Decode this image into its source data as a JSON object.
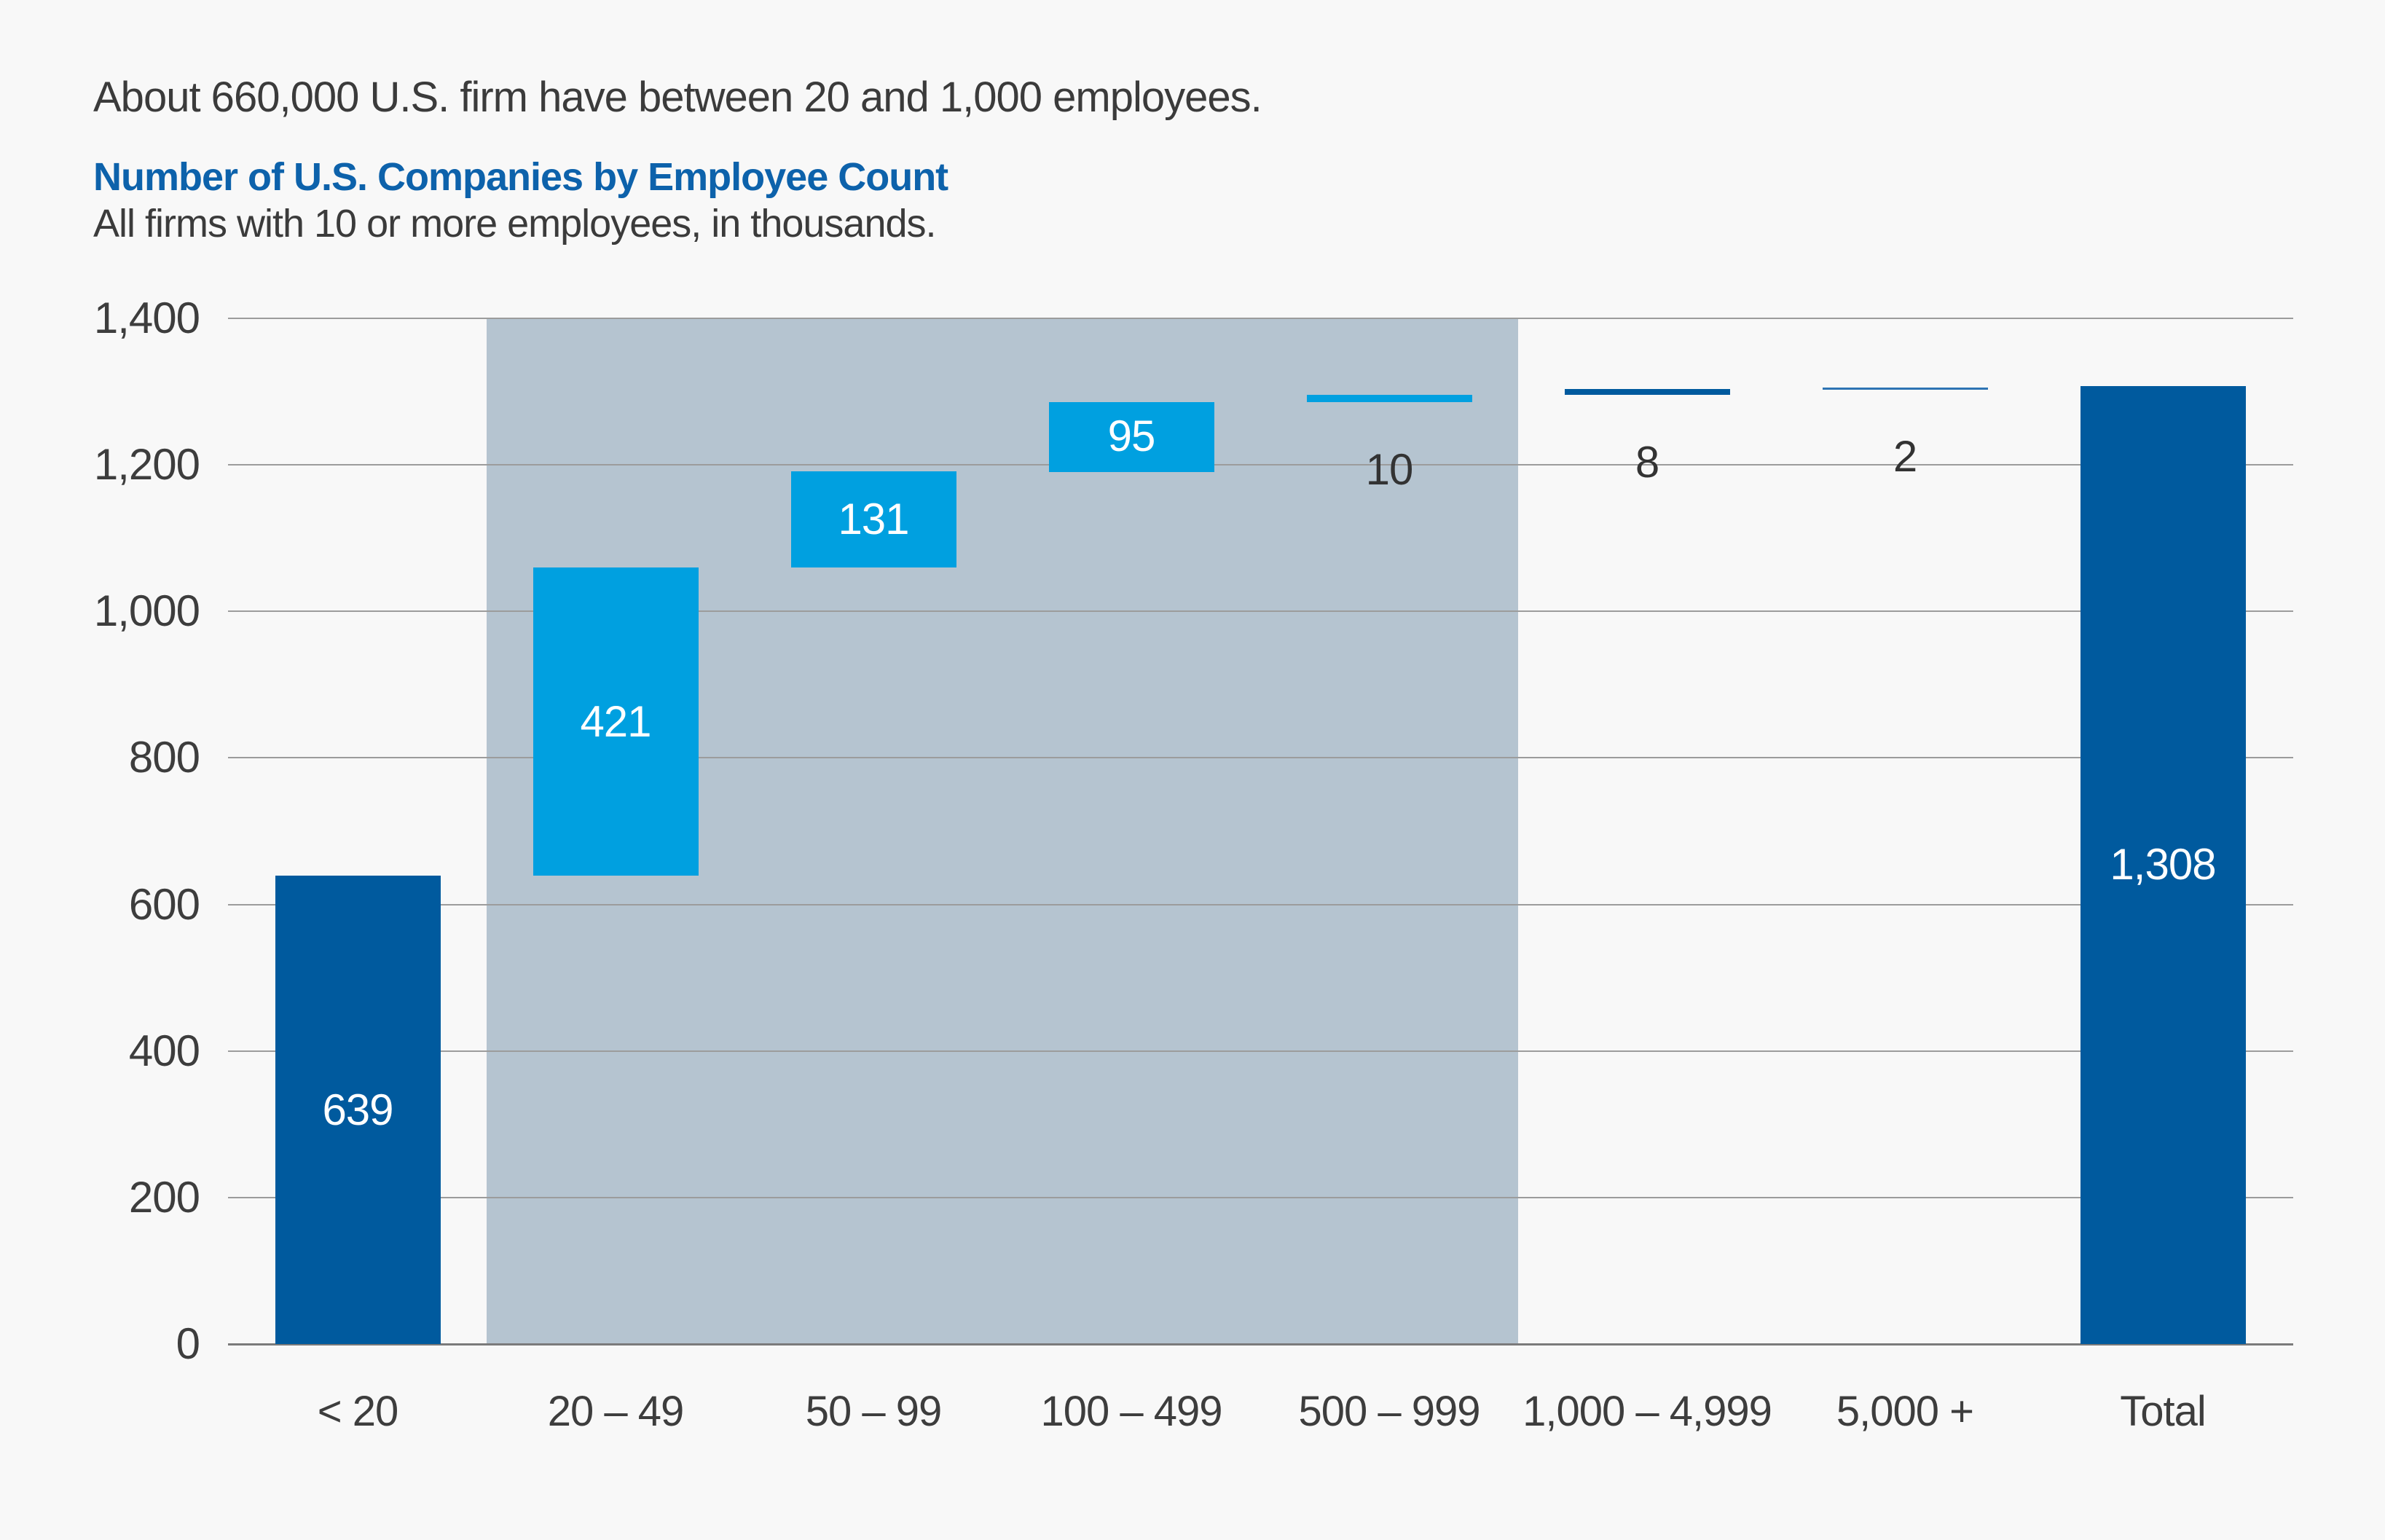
{
  "header": {
    "context_line": "About 660,000 U.S. firm have between 20 and 1,000 employees.",
    "title": "Number of U.S. Companies by Employee Count",
    "subtitle": "All firms with 10 or more employees, in thousands."
  },
  "colors": {
    "background": "#F8F8F8",
    "heading_accent": "#0D62AB",
    "bar_dark": "#005A9E",
    "bar_light": "#00A0E0",
    "bar_thin_line": "#2E74B4",
    "highlight_band": "#B5C4D0",
    "gridline": "#9C9C9C",
    "axis_line": "#7B7B7B",
    "text_dark": "#3B3B3B",
    "label_on_bar": "#FFFFFF"
  },
  "chart_data": {
    "type": "bar",
    "subtype": "waterfall",
    "title": "Number of U.S. Companies by Employee Count",
    "subtitle": "All firms with 10 or more employees, in thousands.",
    "xlabel": "",
    "ylabel": "",
    "categories": [
      "< 20",
      "20 – 49",
      "50 – 99",
      "100 – 499",
      "500 – 999",
      "1,000 – 4,999",
      "5,000 +",
      "Total"
    ],
    "values": [
      639,
      421,
      131,
      95,
      10,
      8,
      2,
      1308
    ],
    "display_values": [
      "639",
      "421",
      "131",
      "95",
      "10",
      "8",
      "2",
      "1,308"
    ],
    "cumulative_starts": [
      0,
      639,
      1060,
      1191,
      1286,
      1296,
      1304,
      0
    ],
    "kinds": [
      "increment",
      "increment",
      "increment",
      "increment",
      "increment",
      "increment",
      "increment",
      "total"
    ],
    "bar_styles": [
      "dark",
      "light",
      "light",
      "light",
      "light",
      "dark",
      "dark",
      "dark"
    ],
    "y_axis": {
      "min": 0,
      "max": 1400,
      "tick_step": 200,
      "tick_values": [
        0,
        200,
        400,
        600,
        800,
        1000,
        1200,
        1400
      ],
      "tick_labels": [
        "0",
        "200",
        "400",
        "600",
        "800",
        "1,000",
        "1,200",
        "1,400"
      ]
    },
    "highlight_band": {
      "from_category_index": 1,
      "to_category_index": 4
    },
    "grid": true,
    "legend": false
  }
}
